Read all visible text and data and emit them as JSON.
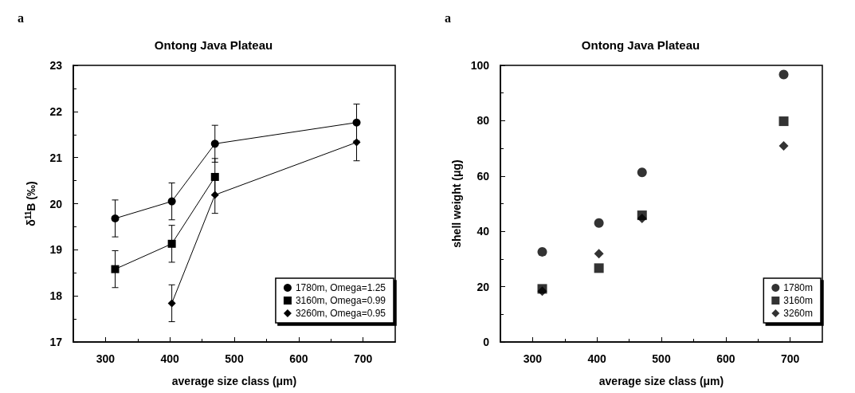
{
  "chart_data": [
    {
      "type": "line",
      "title": "Ontong Java Plateau",
      "xlabel": "average size class (μm)",
      "ylabel": "δ$^{11}$B (‰)",
      "annotations": [
        "a"
      ],
      "xlim": [
        250,
        750
      ],
      "xticks": [
        300,
        400,
        500,
        600,
        700
      ],
      "ylim": [
        17,
        23
      ],
      "yticks": [
        17,
        18,
        19,
        20,
        21,
        22,
        23
      ],
      "grid": false,
      "legend": "bottom right",
      "series": [
        {
          "name": "1780m, Omega=1.25",
          "color": "#000000",
          "marker": "circle",
          "x": [
            315,
            403,
            470,
            690
          ],
          "values": [
            19.68,
            20.05,
            21.3,
            21.76
          ],
          "errors": [
            0.4,
            0.4,
            0.4,
            0.4
          ]
        },
        {
          "name": "3160m, Omega=0.99",
          "color": "#000000",
          "marker": "square",
          "x": [
            315,
            403,
            470
          ],
          "values": [
            18.58,
            19.13,
            20.58
          ],
          "errors": [
            0.4,
            0.4,
            0.4
          ]
        },
        {
          "name": "3260m, Omega=0.95",
          "color": "#000000",
          "marker": "diamond",
          "x": [
            403,
            470,
            690
          ],
          "values": [
            17.84,
            20.19,
            21.33
          ],
          "errors": [
            0.4,
            0.4,
            0.4
          ]
        }
      ]
    },
    {
      "type": "scatter",
      "title": "Ontong Java Plateau",
      "xlabel": "average size class (μm)",
      "ylabel": "shell weight (μg)",
      "annotations": [
        "a"
      ],
      "xlim": [
        250,
        750
      ],
      "xticks": [
        300,
        400,
        500,
        600,
        700
      ],
      "ylim": [
        0,
        100
      ],
      "yticks": [
        0,
        20,
        40,
        60,
        80,
        100
      ],
      "grid": false,
      "legend": "bottom right",
      "series": [
        {
          "name": "1780m",
          "color": "#000000",
          "marker": "circle",
          "x": [
            315,
            403,
            470,
            690
          ],
          "values": [
            32.6,
            43.0,
            61.3,
            96.7
          ]
        },
        {
          "name": "3160m",
          "color": "#000000",
          "marker": "square",
          "x": [
            315,
            403,
            470,
            690
          ],
          "values": [
            19.2,
            26.7,
            45.8,
            79.8
          ]
        },
        {
          "name": "3260m",
          "color": "#000000",
          "marker": "diamond",
          "x": [
            315,
            403,
            470,
            690
          ],
          "values": [
            18.4,
            31.9,
            44.7,
            70.9
          ]
        }
      ]
    }
  ]
}
